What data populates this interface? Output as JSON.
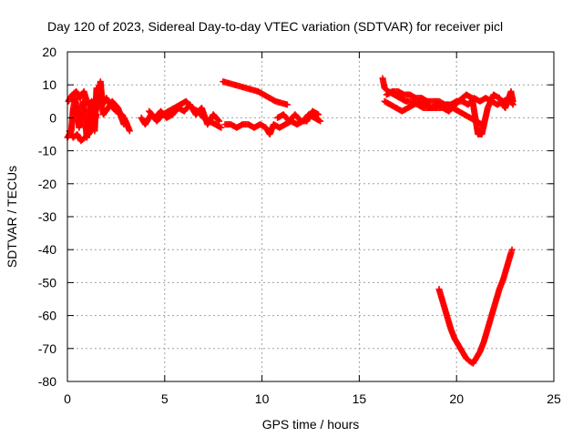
{
  "chart_data": {
    "type": "scatter",
    "title": "Day 120 of 2023, Sidereal Day-to-day VTEC variation (SDTVAR) for receiver picl",
    "xlabel": "GPS time / hours",
    "ylabel": "SDTVAR / TECUs",
    "xlim": [
      0,
      25
    ],
    "ylim": [
      -80,
      20
    ],
    "xticks": [
      0,
      5,
      10,
      15,
      20,
      25
    ],
    "yticks": [
      -80,
      -70,
      -60,
      -50,
      -40,
      -30,
      -20,
      -10,
      0,
      10,
      20
    ],
    "xtick_labels": [
      "0",
      "5",
      "10",
      "15",
      "20",
      "25"
    ],
    "ytick_labels": [
      "-80",
      "-70",
      "-60",
      "-50",
      "-40",
      "-30",
      "-20",
      "-10",
      "0",
      "10",
      "20"
    ],
    "grid": true,
    "marker": "+",
    "color": "#ff0000",
    "series": [
      {
        "name": "SDTVAR",
        "segments": [
          [
            [
              0.0,
              -6
            ],
            [
              0.2,
              -4
            ],
            [
              0.3,
              3
            ],
            [
              0.4,
              6
            ],
            [
              0.5,
              2
            ],
            [
              0.6,
              -3
            ],
            [
              0.8,
              5
            ],
            [
              1.0,
              -6
            ],
            [
              1.2,
              4
            ],
            [
              1.4,
              -4
            ],
            [
              1.5,
              9
            ],
            [
              1.6,
              6
            ],
            [
              1.7,
              11
            ],
            [
              1.8,
              4
            ],
            [
              2.0,
              6
            ],
            [
              2.2,
              4
            ],
            [
              2.5,
              2
            ],
            [
              2.8,
              1
            ],
            [
              3.0,
              -1
            ],
            [
              3.2,
              -4
            ]
          ],
          [
            [
              0.05,
              5
            ],
            [
              0.25,
              7
            ],
            [
              0.45,
              8
            ],
            [
              0.65,
              6
            ],
            [
              0.85,
              8
            ],
            [
              1.05,
              4
            ],
            [
              1.25,
              5
            ],
            [
              1.45,
              2
            ],
            [
              1.65,
              7
            ],
            [
              1.85,
              1
            ],
            [
              2.1,
              3
            ],
            [
              2.3,
              5
            ],
            [
              2.6,
              3
            ],
            [
              2.9,
              -2
            ]
          ],
          [
            [
              0.1,
              -4
            ],
            [
              0.3,
              -6
            ],
            [
              0.5,
              -5
            ],
            [
              0.7,
              -7
            ],
            [
              0.9,
              -6
            ],
            [
              1.1,
              -5
            ],
            [
              1.3,
              -3
            ],
            [
              1.5,
              1
            ]
          ],
          [
            [
              3.8,
              0
            ],
            [
              4.0,
              -2
            ],
            [
              4.3,
              1
            ],
            [
              4.6,
              -1
            ],
            [
              4.9,
              1
            ],
            [
              5.2,
              2
            ],
            [
              5.5,
              3
            ],
            [
              5.8,
              4
            ],
            [
              6.1,
              5
            ],
            [
              6.4,
              3
            ],
            [
              6.7,
              2
            ],
            [
              7.0,
              0
            ],
            [
              7.3,
              -1
            ],
            [
              7.6,
              -2
            ],
            [
              7.9,
              -3
            ]
          ],
          [
            [
              4.2,
              2
            ],
            [
              4.5,
              0
            ],
            [
              4.8,
              2
            ],
            [
              5.1,
              0
            ],
            [
              5.4,
              1
            ],
            [
              5.7,
              3
            ],
            [
              6.0,
              2
            ],
            [
              6.3,
              4
            ],
            [
              6.6,
              1
            ],
            [
              6.9,
              3
            ],
            [
              7.2,
              -2
            ],
            [
              7.5,
              1
            ],
            [
              7.8,
              -1
            ]
          ],
          [
            [
              8.1,
              -2
            ],
            [
              8.4,
              -2
            ],
            [
              8.7,
              -3
            ],
            [
              9.0,
              -2
            ],
            [
              9.3,
              -2
            ],
            [
              9.6,
              -3
            ],
            [
              9.9,
              -2
            ],
            [
              10.2,
              -3
            ],
            [
              10.4,
              -5
            ],
            [
              10.6,
              -2
            ],
            [
              10.9,
              -3
            ],
            [
              11.2,
              -2
            ],
            [
              11.5,
              -1
            ],
            [
              11.8,
              -2
            ],
            [
              12.1,
              -1
            ],
            [
              12.4,
              1
            ],
            [
              12.7,
              0
            ],
            [
              13.0,
              -1
            ]
          ],
          [
            [
              10.8,
              0
            ],
            [
              11.1,
              1
            ],
            [
              11.4,
              -1
            ],
            [
              11.7,
              1
            ],
            [
              12.0,
              -1
            ],
            [
              12.3,
              -1
            ],
            [
              12.6,
              2
            ],
            [
              12.9,
              1
            ]
          ],
          [
            [
              8.0,
              11
            ],
            [
              8.3,
              10.5
            ],
            [
              8.6,
              10
            ],
            [
              8.9,
              9.5
            ],
            [
              9.2,
              9
            ],
            [
              9.5,
              8.5
            ],
            [
              9.8,
              8
            ],
            [
              10.1,
              7
            ],
            [
              10.4,
              6
            ],
            [
              10.7,
              5
            ],
            [
              11.0,
              4.5
            ],
            [
              11.3,
              4
            ]
          ],
          [
            [
              16.2,
              12
            ],
            [
              16.3,
              9
            ],
            [
              16.5,
              8
            ],
            [
              16.8,
              7
            ],
            [
              17.1,
              6
            ],
            [
              17.4,
              5
            ],
            [
              17.7,
              5
            ],
            [
              18.0,
              4
            ],
            [
              18.3,
              3
            ],
            [
              18.6,
              3
            ],
            [
              18.9,
              3
            ],
            [
              19.2,
              3
            ],
            [
              19.5,
              4
            ],
            [
              19.8,
              3
            ],
            [
              20.1,
              2
            ],
            [
              20.4,
              1
            ],
            [
              20.7,
              0
            ],
            [
              21.0,
              -1
            ],
            [
              21.3,
              -2
            ]
          ],
          [
            [
              16.4,
              7
            ],
            [
              16.7,
              8
            ],
            [
              17.0,
              8
            ],
            [
              17.3,
              7
            ],
            [
              17.6,
              7
            ],
            [
              17.9,
              6
            ],
            [
              18.2,
              6
            ],
            [
              18.5,
              5
            ],
            [
              18.8,
              5
            ],
            [
              19.1,
              5
            ],
            [
              19.4,
              4
            ],
            [
              19.7,
              4
            ],
            [
              20.0,
              5
            ],
            [
              20.3,
              5
            ],
            [
              20.6,
              4
            ],
            [
              20.9,
              6
            ],
            [
              21.2,
              5
            ],
            [
              21.5,
              6
            ],
            [
              21.8,
              5
            ],
            [
              22.1,
              4
            ],
            [
              22.4,
              5
            ],
            [
              22.7,
              6
            ],
            [
              22.9,
              4
            ]
          ],
          [
            [
              16.3,
              5
            ],
            [
              16.6,
              4
            ],
            [
              16.9,
              3
            ],
            [
              17.2,
              2
            ],
            [
              17.5,
              3
            ],
            [
              17.8,
              4
            ],
            [
              18.1,
              5
            ],
            [
              18.4,
              4
            ],
            [
              18.7,
              3
            ],
            [
              19.0,
              4
            ],
            [
              19.3,
              3
            ],
            [
              19.6,
              2
            ],
            [
              20.1,
              5
            ],
            [
              20.5,
              7
            ],
            [
              20.8,
              6
            ],
            [
              21.1,
              -5
            ],
            [
              21.3,
              -5
            ],
            [
              21.6,
              3
            ],
            [
              21.9,
              7
            ],
            [
              22.2,
              6
            ],
            [
              22.5,
              3
            ],
            [
              22.8,
              8
            ],
            [
              22.9,
              5
            ]
          ],
          [
            [
              19.1,
              -52
            ],
            [
              19.3,
              -56
            ],
            [
              19.5,
              -60
            ],
            [
              19.7,
              -64
            ],
            [
              19.9,
              -67
            ],
            [
              20.1,
              -69
            ],
            [
              20.3,
              -71
            ],
            [
              20.5,
              -73
            ],
            [
              20.7,
              -74
            ],
            [
              20.85,
              -74.5
            ],
            [
              21.0,
              -73
            ],
            [
              21.2,
              -71
            ],
            [
              21.4,
              -68
            ],
            [
              21.6,
              -64
            ],
            [
              21.8,
              -60
            ],
            [
              22.0,
              -56
            ],
            [
              22.2,
              -52
            ],
            [
              22.4,
              -49
            ],
            [
              22.6,
              -45
            ],
            [
              22.8,
              -41
            ],
            [
              22.85,
              -40
            ]
          ]
        ]
      }
    ]
  }
}
